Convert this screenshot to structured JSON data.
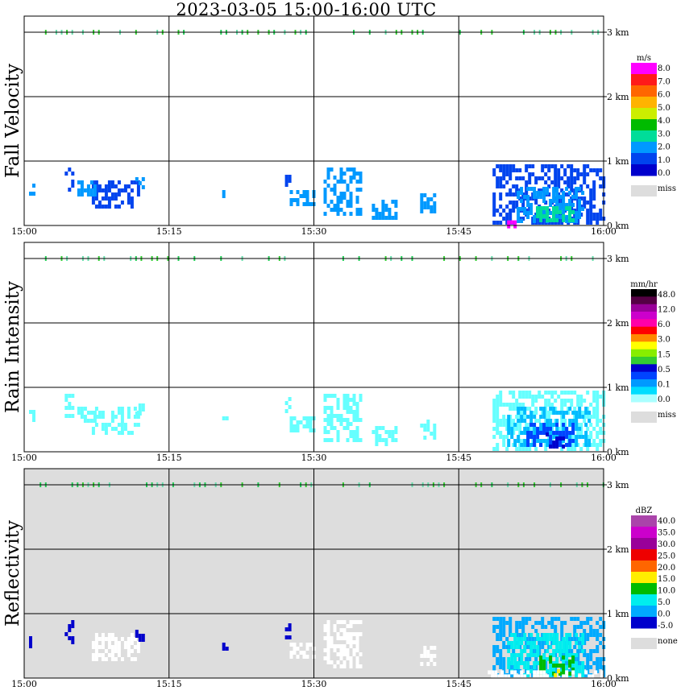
{
  "title": "2023-03-05  15:00-16:00 UTC",
  "x_tick_labels": [
    "15:00",
    "15:15",
    "15:30",
    "15:45",
    "16:00"
  ],
  "y_tick_labels": [
    "3 km",
    "2 km",
    "1 km",
    "0 km"
  ],
  "chart_data": [
    {
      "type": "heatmap",
      "title": "Fall Velocity",
      "ylabel": "Fall Velocity",
      "x_range": [
        "15:00",
        "16:00"
      ],
      "ylim_km": [
        0,
        3
      ],
      "grid": true,
      "background": "#ffffff",
      "colorbar": {
        "unit": "m/s",
        "labels": [
          "8.0",
          "7.0",
          "6.0",
          "5.0",
          "4.0",
          "3.0",
          "2.0",
          "1.0",
          "0.0"
        ],
        "colors": [
          "#ff00ff",
          "#ff1a1a",
          "#ff6600",
          "#ffb300",
          "#ccee00",
          "#00bb00",
          "#00dd99",
          "#0099ff",
          "#0044ee",
          "#0000cc"
        ],
        "miss_label": "miss",
        "miss_color": "#dddddd"
      },
      "echoes": [
        {
          "t0": 4.2,
          "t1": 5.2,
          "h0": 0.55,
          "h1": 0.9,
          "color": "#0044ee"
        },
        {
          "t0": 0.5,
          "t1": 0.9,
          "h0": 0.5,
          "h1": 0.65,
          "color": "#0099ff"
        },
        {
          "t0": 7.0,
          "t1": 12.0,
          "h0": 0.3,
          "h1": 0.7,
          "color": "#0044ee"
        },
        {
          "t0": 11.5,
          "t1": 12.3,
          "h0": 0.6,
          "h1": 0.75,
          "color": "#0099ff"
        },
        {
          "t0": 5.5,
          "t1": 7.5,
          "h0": 0.45,
          "h1": 0.7,
          "color": "#0099ff"
        },
        {
          "t0": 20.5,
          "t1": 21.0,
          "h0": 0.45,
          "h1": 0.55,
          "color": "#0099ff"
        },
        {
          "t0": 27.0,
          "t1": 27.5,
          "h0": 0.6,
          "h1": 0.85,
          "color": "#0044ee"
        },
        {
          "t0": 27.5,
          "t1": 30.0,
          "h0": 0.3,
          "h1": 0.55,
          "color": "#0099ff"
        },
        {
          "t0": 31.0,
          "t1": 35.0,
          "h0": 0.15,
          "h1": 0.9,
          "color": "#0099ff"
        },
        {
          "t0": 36.0,
          "t1": 38.5,
          "h0": 0.1,
          "h1": 0.4,
          "color": "#0099ff"
        },
        {
          "t0": 41.0,
          "t1": 42.5,
          "h0": 0.2,
          "h1": 0.5,
          "color": "#0099ff"
        },
        {
          "t0": 48.5,
          "t1": 60.0,
          "h0": 0.05,
          "h1": 0.95,
          "color": "#0044ee"
        },
        {
          "t0": 51.0,
          "t1": 58.0,
          "h0": 0.05,
          "h1": 0.6,
          "color": "#0099ff"
        },
        {
          "t0": 53.0,
          "t1": 57.0,
          "h0": 0.05,
          "h1": 0.3,
          "color": "#00dd99"
        },
        {
          "t0": 50.0,
          "t1": 51.0,
          "h0": 0.0,
          "h1": 0.08,
          "color": "#ff00ff"
        }
      ]
    },
    {
      "type": "heatmap",
      "title": "Rain Intensity",
      "ylabel": "Rain Intensity",
      "x_range": [
        "15:00",
        "16:00"
      ],
      "ylim_km": [
        0,
        3
      ],
      "grid": true,
      "background": "#ffffff",
      "colorbar": {
        "unit": "mm/hr",
        "labels": [
          "48.0",
          "12.0",
          "6.0",
          "3.0",
          "1.5",
          "0.5",
          "0.1",
          "0.0"
        ],
        "colors": [
          "#000000",
          "#550044",
          "#990099",
          "#cc00cc",
          "#ff00aa",
          "#ff0000",
          "#ff8800",
          "#ffff00",
          "#88ee00",
          "#33cc33",
          "#0000cc",
          "#0044ff",
          "#0099ff",
          "#00ddff",
          "#aaffff"
        ],
        "miss_label": "miss",
        "miss_color": "#dddddd"
      },
      "echoes": [
        {
          "t0": 4.2,
          "t1": 5.2,
          "h0": 0.55,
          "h1": 0.9,
          "color": "#66ffff"
        },
        {
          "t0": 0.5,
          "t1": 0.9,
          "h0": 0.5,
          "h1": 0.65,
          "color": "#66ffff"
        },
        {
          "t0": 7.0,
          "t1": 12.0,
          "h0": 0.3,
          "h1": 0.7,
          "color": "#66ffff"
        },
        {
          "t0": 11.5,
          "t1": 12.3,
          "h0": 0.6,
          "h1": 0.75,
          "color": "#66ffff"
        },
        {
          "t0": 5.5,
          "t1": 7.5,
          "h0": 0.45,
          "h1": 0.7,
          "color": "#66ffff"
        },
        {
          "t0": 20.5,
          "t1": 21.0,
          "h0": 0.45,
          "h1": 0.55,
          "color": "#66ffff"
        },
        {
          "t0": 27.0,
          "t1": 27.5,
          "h0": 0.6,
          "h1": 0.85,
          "color": "#66ffff"
        },
        {
          "t0": 27.5,
          "t1": 30.0,
          "h0": 0.3,
          "h1": 0.55,
          "color": "#66ffff"
        },
        {
          "t0": 31.0,
          "t1": 35.0,
          "h0": 0.15,
          "h1": 0.9,
          "color": "#66ffff"
        },
        {
          "t0": 36.0,
          "t1": 38.5,
          "h0": 0.1,
          "h1": 0.4,
          "color": "#66ffff"
        },
        {
          "t0": 41.0,
          "t1": 42.5,
          "h0": 0.2,
          "h1": 0.5,
          "color": "#66ffff"
        },
        {
          "t0": 48.5,
          "t1": 60.0,
          "h0": 0.05,
          "h1": 0.95,
          "color": "#66ffff"
        },
        {
          "t0": 50.0,
          "t1": 58.5,
          "h0": 0.1,
          "h1": 0.7,
          "color": "#00bbff"
        },
        {
          "t0": 52.0,
          "t1": 57.0,
          "h0": 0.1,
          "h1": 0.45,
          "color": "#0044ff"
        },
        {
          "t0": 54.0,
          "t1": 56.0,
          "h0": 0.1,
          "h1": 0.3,
          "color": "#0000cc"
        }
      ]
    },
    {
      "type": "heatmap",
      "title": "Reflectivity",
      "ylabel": "Reflectivity",
      "x_range": [
        "15:00",
        "16:00"
      ],
      "ylim_km": [
        0,
        3
      ],
      "grid": true,
      "background": "#dddddd",
      "colorbar": {
        "unit": "dBZ",
        "labels": [
          "40.0",
          "35.0",
          "30.0",
          "25.0",
          "20.0",
          "15.0",
          "10.0",
          "5.0",
          "0.0",
          "-5.0"
        ],
        "colors": [
          "#aa44aa",
          "#cc00cc",
          "#990099",
          "#ee0000",
          "#ff6600",
          "#ffee00",
          "#00bb00",
          "#00eeee",
          "#00aaff",
          "#0000cc"
        ],
        "miss_label": "none",
        "miss_color": "#dddddd"
      },
      "echoes": [
        {
          "t0": 4.2,
          "t1": 5.2,
          "h0": 0.55,
          "h1": 0.9,
          "color": "#0000cc"
        },
        {
          "t0": 0.5,
          "t1": 0.9,
          "h0": 0.5,
          "h1": 0.65,
          "color": "#0000cc"
        },
        {
          "t0": 7.0,
          "t1": 12.0,
          "h0": 0.3,
          "h1": 0.7,
          "color": "#ffffff"
        },
        {
          "t0": 11.5,
          "t1": 12.3,
          "h0": 0.6,
          "h1": 0.75,
          "color": "#0000cc"
        },
        {
          "t0": 20.5,
          "t1": 21.0,
          "h0": 0.45,
          "h1": 0.55,
          "color": "#0000cc"
        },
        {
          "t0": 27.0,
          "t1": 27.5,
          "h0": 0.6,
          "h1": 0.85,
          "color": "#0000cc"
        },
        {
          "t0": 27.5,
          "t1": 30.0,
          "h0": 0.3,
          "h1": 0.55,
          "color": "#ffffff"
        },
        {
          "t0": 31.0,
          "t1": 35.0,
          "h0": 0.15,
          "h1": 0.9,
          "color": "#ffffff"
        },
        {
          "t0": 41.0,
          "t1": 42.5,
          "h0": 0.2,
          "h1": 0.5,
          "color": "#ffffff"
        },
        {
          "t0": 48.5,
          "t1": 60.0,
          "h0": 0.05,
          "h1": 0.95,
          "color": "#00aaff"
        },
        {
          "t0": 50.0,
          "t1": 58.0,
          "h0": 0.05,
          "h1": 0.7,
          "color": "#00eeee"
        },
        {
          "t0": 53.0,
          "t1": 57.0,
          "h0": 0.05,
          "h1": 0.35,
          "color": "#00bb00"
        },
        {
          "t0": 54.5,
          "t1": 55.5,
          "h0": 0.05,
          "h1": 0.2,
          "color": "#ffee00"
        },
        {
          "t0": 48.0,
          "t1": 60.0,
          "h0": 0.0,
          "h1": 0.12,
          "color": "#ffffff"
        }
      ]
    }
  ]
}
